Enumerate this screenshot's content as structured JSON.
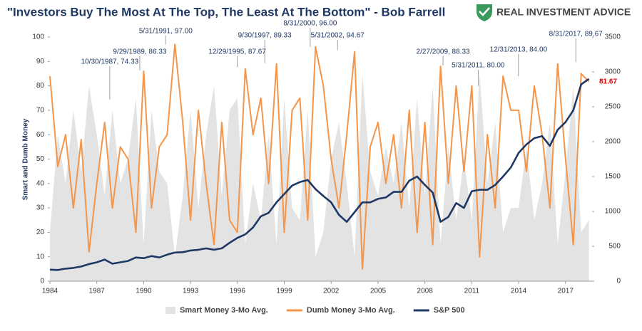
{
  "chart_data": {
    "type": "line",
    "title": "\"Investors Buy The Most At The Top, The Least At The Bottom\" - Bob Farrell",
    "brand": "REAL INVESTMENT ADVICE",
    "ylabel": "Smart and Dumb Money",
    "xlim": [
      1984,
      2018.7
    ],
    "xticks": [
      1984,
      1987,
      1990,
      1993,
      1996,
      1999,
      2002,
      2005,
      2008,
      2011,
      2014,
      2017
    ],
    "ylim": [
      0,
      100
    ],
    "yticks": [
      0,
      10,
      20,
      30,
      40,
      50,
      60,
      70,
      80,
      90,
      100
    ],
    "y2lim": [
      0,
      3500
    ],
    "y2ticks": [
      0,
      500,
      1000,
      1500,
      2000,
      2500,
      3000,
      3500
    ],
    "x": [
      1984,
      1984.5,
      1985,
      1985.5,
      1986,
      1986.5,
      1987,
      1987.5,
      1988,
      1988.5,
      1989,
      1989.5,
      1990,
      1990.5,
      1991,
      1991.5,
      1992,
      1992.5,
      1993,
      1993.5,
      1994,
      1994.5,
      1995,
      1995.5,
      1996,
      1996.5,
      1997,
      1997.5,
      1998,
      1998.5,
      1999,
      1999.5,
      2000,
      2000.5,
      2001,
      2001.5,
      2002,
      2002.5,
      2003,
      2003.5,
      2004,
      2004.5,
      2005,
      2005.5,
      2006,
      2006.5,
      2007,
      2007.5,
      2008,
      2008.5,
      2009,
      2009.5,
      2010,
      2010.5,
      2011,
      2011.5,
      2012,
      2012.5,
      2013,
      2013.5,
      2014,
      2014.5,
      2015,
      2015.5,
      2016,
      2016.5,
      2017,
      2017.5,
      2018,
      2018.5
    ],
    "series": [
      {
        "name": "Smart Money 3-Mo Avg.",
        "kind": "area",
        "color": "#e3e3e3",
        "values": [
          20,
          60,
          40,
          70,
          45,
          80,
          60,
          35,
          70,
          40,
          50,
          75,
          15,
          70,
          45,
          40,
          10,
          35,
          70,
          30,
          60,
          80,
          35,
          70,
          75,
          15,
          40,
          25,
          60,
          15,
          75,
          30,
          25,
          70,
          10,
          20,
          50,
          65,
          40,
          10,
          85,
          45,
          35,
          55,
          40,
          65,
          30,
          75,
          35,
          80,
          15,
          55,
          25,
          50,
          25,
          85,
          40,
          65,
          20,
          30,
          30,
          55,
          25,
          40,
          65,
          15,
          45,
          80,
          20,
          25
        ]
      },
      {
        "name": "Dumb Money 3-Mo Avg.",
        "kind": "line",
        "color": "#f4954a",
        "values": [
          84,
          47,
          60,
          30,
          58,
          12,
          40,
          65,
          30,
          55,
          50,
          20,
          86,
          30,
          55,
          60,
          97,
          65,
          25,
          70,
          40,
          15,
          65,
          25,
          20,
          87,
          60,
          75,
          40,
          89,
          20,
          70,
          75,
          25,
          96,
          80,
          50,
          30,
          60,
          94,
          5,
          55,
          65,
          40,
          60,
          30,
          70,
          20,
          65,
          15,
          88,
          40,
          80,
          45,
          80,
          10,
          60,
          30,
          84,
          70,
          70,
          45,
          80,
          60,
          30,
          89,
          50,
          15,
          85,
          81.67
        ]
      },
      {
        "name": "S&P 500",
        "kind": "line",
        "axis": "y2",
        "color": "#1f3864",
        "values": [
          165,
          160,
          180,
          190,
          210,
          245,
          270,
          310,
          250,
          270,
          290,
          340,
          330,
          360,
          340,
          380,
          410,
          415,
          440,
          450,
          470,
          450,
          470,
          550,
          620,
          670,
          770,
          930,
          980,
          1130,
          1250,
          1370,
          1420,
          1450,
          1320,
          1220,
          1130,
          950,
          850,
          990,
          1130,
          1130,
          1180,
          1200,
          1280,
          1280,
          1440,
          1500,
          1380,
          1270,
          850,
          920,
          1120,
          1050,
          1290,
          1310,
          1310,
          1380,
          1500,
          1630,
          1840,
          1960,
          2050,
          2080,
          1940,
          2170,
          2280,
          2450,
          2820,
          2900
        ]
      }
    ],
    "last_label_color": "#e00000",
    "annotations": [
      {
        "label": "10/30/1987, 74.33",
        "x": 1987.83,
        "y": 74.33
      },
      {
        "label": "9/29/1989, 86.33",
        "x": 1989.75,
        "y": 86.33
      },
      {
        "label": "5/31/1991, 97.00",
        "x": 1991.41,
        "y": 97
      },
      {
        "label": "12/29/1995, 87.67",
        "x": 1995.99,
        "y": 87.67
      },
      {
        "label": "9/30/1997, 89.33",
        "x": 1997.75,
        "y": 89.33
      },
      {
        "label": "8/31/2000, 96.00",
        "x": 2000.66,
        "y": 96
      },
      {
        "label": "5/31/2002, 94.67",
        "x": 2002.41,
        "y": 94.67
      },
      {
        "label": "2/27/2009, 88.33",
        "x": 2009.16,
        "y": 88.33
      },
      {
        "label": "5/31/2011, 80.00",
        "x": 2011.41,
        "y": 80
      },
      {
        "label": "12/31/2013, 84.00",
        "x": 2013.99,
        "y": 84
      },
      {
        "label": "8/31/2017, 89.67",
        "x": 2017.66,
        "y": 89.67
      }
    ]
  }
}
